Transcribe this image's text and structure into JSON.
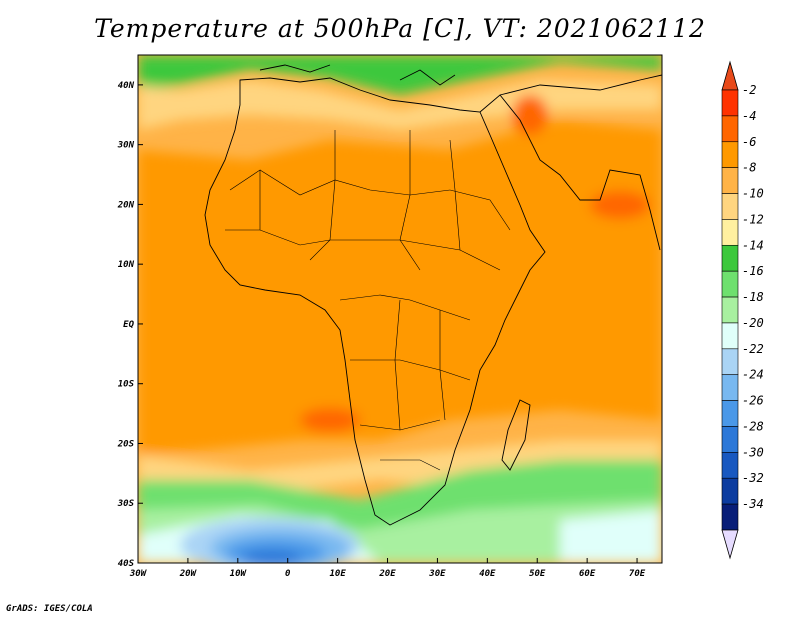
{
  "title": "Temperature at 500hPa [C], VT: 2021062112",
  "credit": "GrADS: IGES/COLA",
  "map": {
    "lon_range": [
      -30,
      75
    ],
    "lat_range": [
      -40,
      45
    ],
    "lon_ticks": [
      {
        "value": -30,
        "label": "30W"
      },
      {
        "value": -20,
        "label": "20W"
      },
      {
        "value": -10,
        "label": "10W"
      },
      {
        "value": 0,
        "label": "0"
      },
      {
        "value": 10,
        "label": "10E"
      },
      {
        "value": 20,
        "label": "20E"
      },
      {
        "value": 30,
        "label": "30E"
      },
      {
        "value": 40,
        "label": "40E"
      },
      {
        "value": 50,
        "label": "50E"
      },
      {
        "value": 60,
        "label": "60E"
      },
      {
        "value": 70,
        "label": "70E"
      }
    ],
    "lat_ticks": [
      {
        "value": 40,
        "label": "40N"
      },
      {
        "value": 30,
        "label": "30N"
      },
      {
        "value": 20,
        "label": "20N"
      },
      {
        "value": 10,
        "label": "10N"
      },
      {
        "value": 0,
        "label": "EQ"
      },
      {
        "value": -10,
        "label": "10S"
      },
      {
        "value": -20,
        "label": "20S"
      },
      {
        "value": -30,
        "label": "30S"
      },
      {
        "value": -40,
        "label": "40S"
      }
    ]
  },
  "colorbar": {
    "labels": [
      "-2",
      "-4",
      "-6",
      "-8",
      "-10",
      "-12",
      "-14",
      "-16",
      "-18",
      "-20",
      "-22",
      "-24",
      "-26",
      "-28",
      "-30",
      "-32",
      "-34"
    ],
    "colors": [
      "#ff3300",
      "#ff6600",
      "#ff9900",
      "#ffb347",
      "#ffd580",
      "#fff0a0",
      "#3cc83c",
      "#6ee06e",
      "#a8f0a0",
      "#e0fffa",
      "#aad4f5",
      "#78b8f0",
      "#4a98e8",
      "#2c78d8",
      "#1858c0",
      "#0c3ca0",
      "#081e78"
    ],
    "top_color": "#e84a1a",
    "bottom_color": "#e6dcff"
  }
}
